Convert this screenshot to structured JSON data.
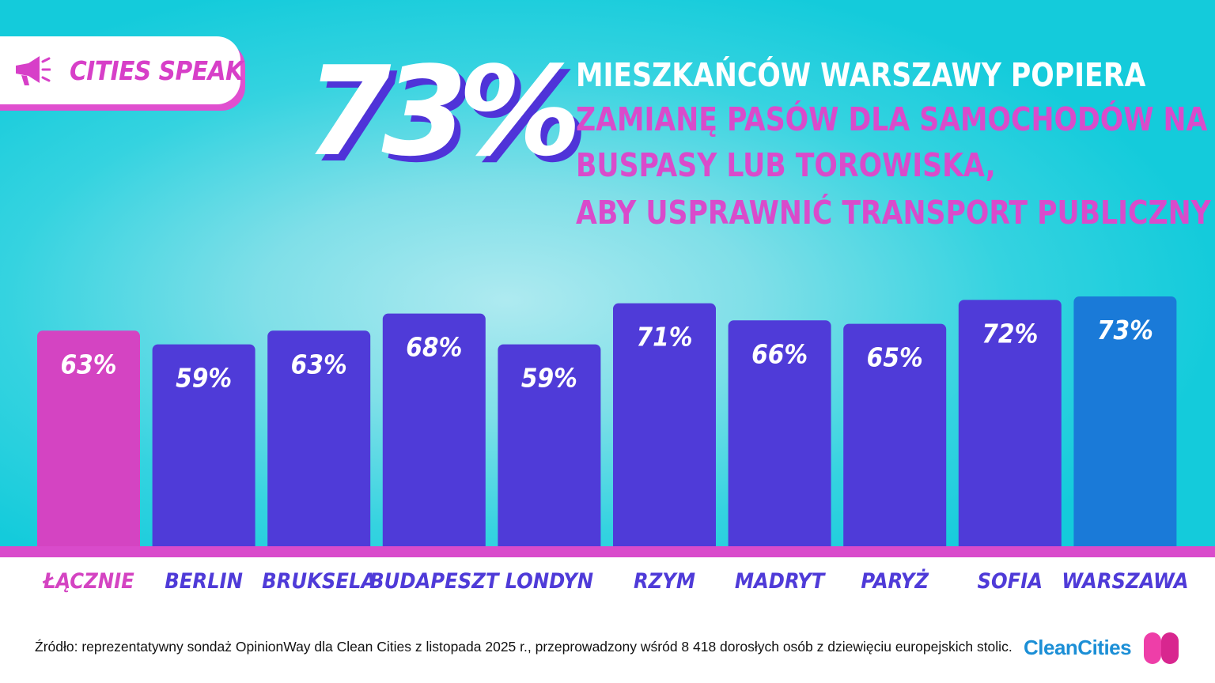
{
  "badge": {
    "label": "CITIES SPEAK",
    "icon": "megaphone-icon"
  },
  "headline": {
    "big_number": "73%",
    "line1": "MIESZKAŃCÓW WARSZAWY POPIERA",
    "line2": "ZAMIANĘ PASÓW DLA SAMOCHODÓW NA",
    "line3": "BUSPASY LUB TOROWISKA,",
    "line4": "ABY USPRAWNIĆ TRANSPORT PUBLICZNY"
  },
  "chart_data": {
    "type": "bar",
    "title": "",
    "xlabel": "",
    "ylabel": "",
    "ylim": [
      0,
      73
    ],
    "grid": false,
    "legend": "none",
    "categories": [
      "ŁĄCZNIE",
      "BERLIN",
      "BRUKSELA",
      "BUDAPESZT",
      "LONDYN",
      "RZYM",
      "MADRYT",
      "PARYŻ",
      "SOFIA",
      "WARSZAWA"
    ],
    "values": [
      63,
      59,
      63,
      68,
      59,
      71,
      66,
      65,
      72,
      73
    ],
    "value_labels": [
      "63%",
      "59%",
      "63%",
      "68%",
      "59%",
      "71%",
      "66%",
      "65%",
      "72%",
      "73%"
    ],
    "bar_colors": [
      "#d444c2",
      "#4f3bd8",
      "#4f3bd8",
      "#4f3bd8",
      "#4f3bd8",
      "#4f3bd8",
      "#4f3bd8",
      "#4f3bd8",
      "#4f3bd8",
      "#1a7ad8"
    ],
    "label_colors": [
      "#d444c2",
      "#4f3bd8",
      "#4f3bd8",
      "#4f3bd8",
      "#4f3bd8",
      "#4f3bd8",
      "#4f3bd8",
      "#4f3bd8",
      "#4f3bd8",
      "#4f3bd8"
    ]
  },
  "footer": {
    "source": "Źródło: reprezentatywny sondaż OpinionWay dla Clean Cities z listopada 2025 r., przeprowadzony wśród 8 418 dorosłych osób z dziewięciu europejskich stolic.",
    "logo_text": "CleanCities"
  },
  "colors": {
    "accent_pink": "#d444c2",
    "bar_blue": "#4f3bd8",
    "highlight_blue": "#1a7ad8",
    "baseline": "#d94bcb"
  }
}
